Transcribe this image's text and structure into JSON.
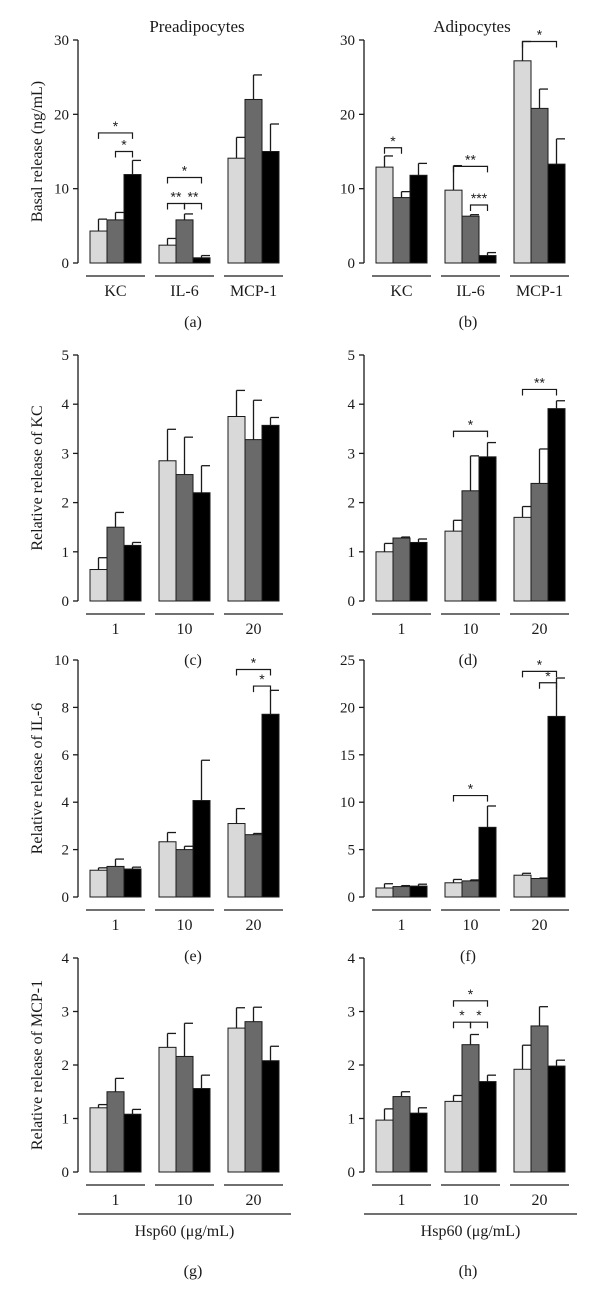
{
  "colors": {
    "light": "#d9d9d9",
    "mid": "#6a6a6a",
    "dark": "#000000"
  },
  "figure": {
    "hsp_label": "Hsp60 (μg/mL)"
  },
  "chart_data": [
    {
      "id": "a",
      "type": "bar",
      "panel_label": "(a)",
      "title": "Preadipocytes",
      "ylabel": "Basal release (ng/mL)",
      "ylim": [
        0,
        30
      ],
      "yticks": [
        0,
        10,
        20,
        30
      ],
      "categories": [
        "KC",
        "IL-6",
        "MCP-1"
      ],
      "series": [
        {
          "values": [
            4.3,
            2.4,
            14.1
          ],
          "errors": [
            1.6,
            0.9,
            2.8
          ]
        },
        {
          "values": [
            5.8,
            5.8,
            22.0
          ],
          "errors": [
            1.0,
            0.8,
            3.3
          ]
        },
        {
          "values": [
            11.9,
            0.7,
            15.0
          ],
          "errors": [
            1.9,
            0.3,
            3.7
          ]
        }
      ],
      "annotations": [
        {
          "g": 0,
          "from": 0,
          "to": 2,
          "y": 17.5,
          "label": "*"
        },
        {
          "g": 0,
          "from": 1,
          "to": 2,
          "y": 15.0,
          "label": "*"
        },
        {
          "g": 1,
          "from": 0,
          "to": 2,
          "y": 11.5,
          "label": "*"
        },
        {
          "g": 1,
          "from": 0,
          "to": 1,
          "y": 8.0,
          "label": "**"
        },
        {
          "g": 1,
          "from": 1,
          "to": 2,
          "y": 8.0,
          "label": "**"
        }
      ]
    },
    {
      "id": "b",
      "type": "bar",
      "panel_label": "(b)",
      "title": "Adipocytes",
      "ylabel": "",
      "ylim": [
        0,
        30
      ],
      "yticks": [
        0,
        10,
        20,
        30
      ],
      "categories": [
        "KC",
        "IL-6",
        "MCP-1"
      ],
      "series": [
        {
          "values": [
            12.9,
            9.8,
            27.2
          ],
          "errors": [
            1.5,
            3.3,
            2.6
          ]
        },
        {
          "values": [
            8.8,
            6.3,
            20.8
          ],
          "errors": [
            0.8,
            0.2,
            2.6
          ]
        },
        {
          "values": [
            11.8,
            1.0,
            13.3
          ],
          "errors": [
            1.6,
            0.4,
            3.4
          ]
        }
      ],
      "annotations": [
        {
          "g": 0,
          "from": 0,
          "to": 1,
          "y": 15.5,
          "label": "*"
        },
        {
          "g": 1,
          "from": 0,
          "to": 2,
          "y": 13.0,
          "label": "**"
        },
        {
          "g": 1,
          "from": 1,
          "to": 2,
          "y": 7.8,
          "label": "***"
        },
        {
          "g": 2,
          "from": 0,
          "to": 2,
          "y": 29.8,
          "label": "*"
        }
      ]
    },
    {
      "id": "c",
      "type": "bar",
      "panel_label": "(c)",
      "title": "",
      "ylabel": "Relative release of KC",
      "ylim": [
        0,
        5
      ],
      "yticks": [
        0,
        1,
        2,
        3,
        4,
        5
      ],
      "categories": [
        "1",
        "10",
        "20"
      ],
      "series": [
        {
          "values": [
            0.64,
            2.85,
            3.75
          ],
          "errors": [
            0.24,
            0.64,
            0.53
          ]
        },
        {
          "values": [
            1.5,
            2.57,
            3.28
          ],
          "errors": [
            0.3,
            0.76,
            0.8
          ]
        },
        {
          "values": [
            1.13,
            2.2,
            3.57
          ],
          "errors": [
            0.06,
            0.55,
            0.16
          ]
        }
      ],
      "annotations": []
    },
    {
      "id": "d",
      "type": "bar",
      "panel_label": "(d)",
      "title": "",
      "ylabel": "",
      "ylim": [
        0,
        5
      ],
      "yticks": [
        0,
        1,
        2,
        3,
        4,
        5
      ],
      "categories": [
        "1",
        "10",
        "20"
      ],
      "series": [
        {
          "values": [
            1.0,
            1.42,
            1.7
          ],
          "errors": [
            0.17,
            0.22,
            0.22
          ]
        },
        {
          "values": [
            1.28,
            2.24,
            2.39
          ],
          "errors": [
            0.02,
            0.71,
            0.7
          ]
        },
        {
          "values": [
            1.19,
            2.93,
            3.91
          ],
          "errors": [
            0.07,
            0.29,
            0.16
          ]
        }
      ],
      "annotations": [
        {
          "g": 1,
          "from": 0,
          "to": 2,
          "y": 3.45,
          "label": "*"
        },
        {
          "g": 2,
          "from": 0,
          "to": 2,
          "y": 4.3,
          "label": "**"
        }
      ]
    },
    {
      "id": "e",
      "type": "bar",
      "panel_label": "(e)",
      "title": "",
      "ylabel": "Relative release of IL-6",
      "ylim": [
        0,
        10
      ],
      "yticks": [
        0,
        2,
        4,
        6,
        8,
        10
      ],
      "categories": [
        "1",
        "10",
        "20"
      ],
      "series": [
        {
          "values": [
            1.13,
            2.33,
            3.1
          ],
          "errors": [
            0.1,
            0.39,
            0.63
          ]
        },
        {
          "values": [
            1.29,
            2.0,
            2.63
          ],
          "errors": [
            0.31,
            0.14,
            0.05
          ]
        },
        {
          "values": [
            1.18,
            4.07,
            7.71
          ],
          "errors": [
            0.08,
            1.7,
            1.01
          ]
        }
      ],
      "annotations": [
        {
          "g": 2,
          "from": 0,
          "to": 2,
          "y": 9.6,
          "label": "*"
        },
        {
          "g": 2,
          "from": 1,
          "to": 2,
          "y": 8.9,
          "label": "*"
        }
      ]
    },
    {
      "id": "f",
      "type": "bar",
      "panel_label": "(f)",
      "title": "",
      "ylabel": "",
      "ylim": [
        0,
        25
      ],
      "yticks": [
        0,
        5,
        10,
        15,
        20,
        25
      ],
      "categories": [
        "1",
        "10",
        "20"
      ],
      "series": [
        {
          "values": [
            0.95,
            1.5,
            2.3
          ],
          "errors": [
            0.45,
            0.35,
            0.2
          ]
        },
        {
          "values": [
            1.1,
            1.7,
            1.95
          ],
          "errors": [
            0.1,
            0.1,
            0.05
          ]
        },
        {
          "values": [
            1.15,
            7.35,
            19.05
          ],
          "errors": [
            0.2,
            2.25,
            4.05
          ]
        }
      ],
      "annotations": [
        {
          "g": 1,
          "from": 0,
          "to": 2,
          "y": 10.7,
          "label": "*"
        },
        {
          "g": 2,
          "from": 0,
          "to": 2,
          "y": 23.8,
          "label": "*"
        },
        {
          "g": 2,
          "from": 1,
          "to": 2,
          "y": 22.6,
          "label": "*"
        }
      ]
    },
    {
      "id": "g",
      "type": "bar",
      "panel_label": "(g)",
      "title": "",
      "ylabel": "Relative release of MCP-1",
      "ylim": [
        0,
        4
      ],
      "yticks": [
        0,
        1,
        2,
        3,
        4
      ],
      "categories": [
        "1",
        "10",
        "20"
      ],
      "series": [
        {
          "values": [
            1.2,
            2.33,
            2.69
          ],
          "errors": [
            0.06,
            0.26,
            0.38
          ]
        },
        {
          "values": [
            1.5,
            2.16,
            2.81
          ],
          "errors": [
            0.25,
            0.62,
            0.27
          ]
        },
        {
          "values": [
            1.08,
            1.56,
            2.08
          ],
          "errors": [
            0.09,
            0.25,
            0.27
          ]
        }
      ],
      "annotations": []
    },
    {
      "id": "h",
      "type": "bar",
      "panel_label": "(h)",
      "title": "",
      "ylabel": "",
      "ylim": [
        0,
        4
      ],
      "yticks": [
        0,
        1,
        2,
        3,
        4
      ],
      "categories": [
        "1",
        "10",
        "20"
      ],
      "series": [
        {
          "values": [
            0.97,
            1.32,
            1.92
          ],
          "errors": [
            0.21,
            0.11,
            0.45
          ]
        },
        {
          "values": [
            1.41,
            2.38,
            2.73
          ],
          "errors": [
            0.09,
            0.19,
            0.36
          ]
        },
        {
          "values": [
            1.1,
            1.69,
            1.98
          ],
          "errors": [
            0.1,
            0.12,
            0.11
          ]
        }
      ],
      "annotations": [
        {
          "g": 1,
          "from": 0,
          "to": 2,
          "y": 3.2,
          "label": "*"
        },
        {
          "g": 1,
          "from": 0,
          "to": 1,
          "y": 2.8,
          "label": "*"
        },
        {
          "g": 1,
          "from": 1,
          "to": 2,
          "y": 2.8,
          "label": "*"
        }
      ]
    }
  ]
}
